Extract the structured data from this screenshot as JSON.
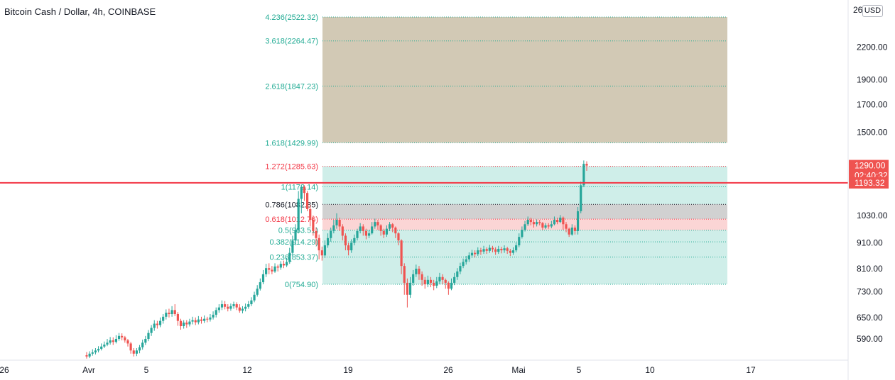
{
  "header": {
    "title": "Bitcoin Cash / Dollar, 4h, COINBASE",
    "currency_button": "USD",
    "top_right_partial": "26"
  },
  "colors": {
    "up": "#26a69a",
    "down": "#ef5350",
    "level_line": "#f23645",
    "price_tag": "#ef5350",
    "fib_teal": "#22ab94",
    "fib_red": "#f23645",
    "fib_black": "#131722"
  },
  "chart_data": {
    "type": "candlestick",
    "symbol": "Bitcoin Cash / Dollar",
    "interval": "4h",
    "exchange": "COINBASE",
    "x_ticks": [
      "26",
      "Avr",
      "5",
      "12",
      "19",
      "26",
      "Mai",
      "5",
      "10",
      "17"
    ],
    "y_scale": "log",
    "y_ticks": [
      "2200.00",
      "1900.00",
      "1700.00",
      "1500.00",
      "1030.00",
      "910.00",
      "810.00",
      "730.00",
      "650.00",
      "590.00"
    ],
    "current_price": {
      "label": "1290.00",
      "countdown": "02:40:32"
    },
    "horizontal_line": {
      "label": "1193.32",
      "value": 1193.32
    },
    "fib_extension": {
      "levels": [
        {
          "label": "4.236(2522.32)",
          "value": 2522.32,
          "color": "teal"
        },
        {
          "label": "3.618(2264.47)",
          "value": 2264.47,
          "color": "teal"
        },
        {
          "label": "2.618(1847.23)",
          "value": 1847.23,
          "color": "teal"
        },
        {
          "label": "1.618(1429.99)",
          "value": 1429.99,
          "color": "teal"
        },
        {
          "label": "1.272(1285.63)",
          "value": 1285.63,
          "color": "red"
        },
        {
          "label": "1(1172.14)",
          "value": 1172.14,
          "color": "teal"
        },
        {
          "label": "0.786(1082.85)",
          "value": 1082.85,
          "color": "black"
        },
        {
          "label": "0.618(1012.76)",
          "value": 1012.76,
          "color": "red"
        },
        {
          "label": "0.5(963.51)",
          "value": 963.51,
          "color": "teal"
        },
        {
          "label": "0.382(914.29)",
          "value": 914.29,
          "color": "teal"
        },
        {
          "label": "0.236(853.37)",
          "value": 853.37,
          "color": "teal"
        },
        {
          "label": "0(754.90)",
          "value": 754.9,
          "color": "teal"
        }
      ],
      "zones": [
        {
          "from": 1429.99,
          "to": 2522.32,
          "color": "#d2c9b5"
        },
        {
          "from": 1082.85,
          "to": 1285.63,
          "color": "#cfeee9"
        },
        {
          "from": 1012.76,
          "to": 1082.85,
          "color": "#d1d1d1"
        },
        {
          "from": 963.51,
          "to": 1012.76,
          "color": "#fbd5d5"
        },
        {
          "from": 754.9,
          "to": 963.51,
          "color": "#cfeee9"
        }
      ]
    },
    "ohlc_series": [
      [
        548,
        545,
        556,
        540
      ],
      [
        545,
        552,
        558,
        541
      ],
      [
        552,
        555,
        563,
        547
      ],
      [
        555,
        560,
        566,
        550
      ],
      [
        560,
        564,
        571,
        555
      ],
      [
        564,
        570,
        578,
        560
      ],
      [
        570,
        575,
        583,
        566
      ],
      [
        575,
        580,
        590,
        571
      ],
      [
        580,
        586,
        595,
        575
      ],
      [
        586,
        582,
        594,
        574
      ],
      [
        582,
        590,
        600,
        578
      ],
      [
        590,
        598,
        606,
        585
      ],
      [
        598,
        594,
        605,
        586
      ],
      [
        594,
        586,
        598,
        580
      ],
      [
        586,
        578,
        590,
        570
      ],
      [
        578,
        560,
        582,
        552
      ],
      [
        560,
        552,
        566,
        545
      ],
      [
        552,
        560,
        566,
        546
      ],
      [
        560,
        568,
        574,
        553
      ],
      [
        568,
        580,
        588,
        562
      ],
      [
        580,
        590,
        598,
        574
      ],
      [
        590,
        606,
        614,
        584
      ],
      [
        606,
        620,
        628,
        598
      ],
      [
        620,
        632,
        642,
        612
      ],
      [
        632,
        628,
        640,
        618
      ],
      [
        628,
        640,
        650,
        622
      ],
      [
        640,
        652,
        660,
        632
      ],
      [
        652,
        664,
        674,
        644
      ],
      [
        664,
        660,
        676,
        650
      ],
      [
        660,
        672,
        684,
        652
      ],
      [
        672,
        660,
        690,
        654
      ],
      [
        660,
        640,
        666,
        626
      ],
      [
        640,
        625,
        646,
        615
      ],
      [
        625,
        635,
        642,
        618
      ],
      [
        635,
        630,
        642,
        620
      ],
      [
        630,
        638,
        646,
        624
      ],
      [
        638,
        642,
        652,
        630
      ],
      [
        642,
        636,
        650,
        628
      ],
      [
        636,
        644,
        654,
        630
      ],
      [
        644,
        640,
        652,
        632
      ],
      [
        640,
        646,
        656,
        634
      ],
      [
        646,
        644,
        652,
        636
      ],
      [
        644,
        650,
        660,
        638
      ],
      [
        650,
        658,
        668,
        644
      ],
      [
        658,
        672,
        680,
        650
      ],
      [
        672,
        680,
        690,
        664
      ],
      [
        680,
        690,
        702,
        672
      ],
      [
        690,
        682,
        700,
        674
      ],
      [
        682,
        676,
        690,
        668
      ],
      [
        676,
        684,
        692,
        670
      ],
      [
        684,
        690,
        698,
        676
      ],
      [
        690,
        680,
        696,
        672
      ],
      [
        680,
        670,
        690,
        664
      ],
      [
        670,
        676,
        684,
        662
      ],
      [
        676,
        682,
        692,
        668
      ],
      [
        682,
        690,
        700,
        676
      ],
      [
        690,
        702,
        712,
        684
      ],
      [
        702,
        720,
        730,
        696
      ],
      [
        720,
        740,
        752,
        714
      ],
      [
        740,
        762,
        775,
        734
      ],
      [
        762,
        790,
        805,
        755
      ],
      [
        790,
        812,
        828,
        780
      ],
      [
        812,
        806,
        830,
        790
      ],
      [
        806,
        800,
        820,
        790
      ],
      [
        800,
        818,
        830,
        795
      ],
      [
        818,
        814,
        825,
        800
      ],
      [
        814,
        828,
        838,
        806
      ],
      [
        828,
        822,
        840,
        812
      ],
      [
        822,
        835,
        850,
        816
      ],
      [
        835,
        870,
        890,
        828
      ],
      [
        870,
        920,
        940,
        855
      ],
      [
        920,
        965,
        990,
        900
      ],
      [
        965,
        1110,
        1150,
        950
      ],
      [
        1110,
        1172,
        1180,
        1040
      ],
      [
        1172,
        1140,
        1180,
        1100
      ],
      [
        1140,
        1060,
        1150,
        1050
      ],
      [
        1060,
        1010,
        1080,
        980
      ],
      [
        1010,
        960,
        1030,
        940
      ],
      [
        960,
        930,
        975,
        900
      ],
      [
        930,
        880,
        945,
        845
      ],
      [
        880,
        860,
        895,
        840
      ],
      [
        860,
        900,
        920,
        850
      ],
      [
        900,
        930,
        950,
        890
      ],
      [
        930,
        960,
        975,
        915
      ],
      [
        960,
        985,
        1010,
        950
      ],
      [
        985,
        1010,
        1040,
        970
      ],
      [
        1010,
        980,
        1020,
        960
      ],
      [
        980,
        940,
        990,
        920
      ],
      [
        940,
        900,
        950,
        880
      ],
      [
        900,
        880,
        910,
        860
      ],
      [
        880,
        910,
        925,
        870
      ],
      [
        910,
        930,
        945,
        900
      ],
      [
        930,
        960,
        970,
        920
      ],
      [
        960,
        980,
        995,
        950
      ],
      [
        980,
        960,
        990,
        940
      ],
      [
        960,
        940,
        970,
        925
      ],
      [
        940,
        950,
        965,
        930
      ],
      [
        950,
        980,
        1000,
        945
      ],
      [
        980,
        1000,
        1015,
        970
      ],
      [
        1000,
        985,
        1010,
        965
      ],
      [
        985,
        960,
        990,
        940
      ],
      [
        960,
        945,
        970,
        930
      ],
      [
        945,
        970,
        985,
        935
      ],
      [
        970,
        990,
        1000,
        960
      ],
      [
        990,
        975,
        995,
        955
      ],
      [
        975,
        950,
        980,
        930
      ],
      [
        950,
        920,
        955,
        900
      ],
      [
        920,
        820,
        925,
        790
      ],
      [
        820,
        760,
        830,
        720
      ],
      [
        760,
        720,
        775,
        680
      ],
      [
        720,
        760,
        780,
        710
      ],
      [
        760,
        790,
        805,
        750
      ],
      [
        790,
        810,
        825,
        780
      ],
      [
        810,
        790,
        820,
        770
      ],
      [
        790,
        770,
        800,
        750
      ],
      [
        770,
        755,
        780,
        740
      ],
      [
        755,
        770,
        785,
        745
      ],
      [
        770,
        760,
        780,
        745
      ],
      [
        760,
        750,
        770,
        735
      ],
      [
        750,
        765,
        780,
        742
      ],
      [
        765,
        780,
        795,
        755
      ],
      [
        780,
        770,
        790,
        755
      ],
      [
        770,
        760,
        775,
        740
      ],
      [
        760,
        740,
        765,
        720
      ],
      [
        740,
        760,
        775,
        735
      ],
      [
        760,
        780,
        795,
        752
      ],
      [
        780,
        800,
        812,
        770
      ],
      [
        800,
        820,
        832,
        790
      ],
      [
        820,
        835,
        848,
        812
      ],
      [
        835,
        845,
        858,
        825
      ],
      [
        845,
        860,
        872,
        835
      ],
      [
        860,
        870,
        882,
        850
      ],
      [
        870,
        865,
        880,
        852
      ],
      [
        865,
        880,
        892,
        858
      ],
      [
        880,
        875,
        890,
        862
      ],
      [
        875,
        885,
        898,
        866
      ],
      [
        885,
        878,
        892,
        866
      ],
      [
        878,
        890,
        902,
        870
      ],
      [
        890,
        884,
        898,
        872
      ],
      [
        884,
        874,
        892,
        862
      ],
      [
        874,
        886,
        898,
        866
      ],
      [
        886,
        880,
        894,
        868
      ],
      [
        880,
        888,
        900,
        870
      ],
      [
        888,
        878,
        894,
        866
      ],
      [
        878,
        870,
        886,
        858
      ],
      [
        870,
        880,
        892,
        862
      ],
      [
        880,
        900,
        912,
        872
      ],
      [
        900,
        935,
        950,
        892
      ],
      [
        935,
        965,
        980,
        928
      ],
      [
        965,
        990,
        1005,
        958
      ],
      [
        990,
        1010,
        1025,
        982
      ],
      [
        1010,
        1000,
        1020,
        985
      ],
      [
        1000,
        990,
        1010,
        975
      ],
      [
        990,
        1000,
        1012,
        980
      ],
      [
        1000,
        995,
        1010,
        985
      ],
      [
        995,
        975,
        1000,
        965
      ],
      [
        975,
        985,
        995,
        968
      ],
      [
        985,
        980,
        995,
        970
      ],
      [
        980,
        990,
        1005,
        972
      ],
      [
        990,
        1010,
        1025,
        985
      ],
      [
        1010,
        1000,
        1020,
        990
      ],
      [
        1000,
        1020,
        1032,
        995
      ],
      [
        1020,
        990,
        1025,
        965
      ],
      [
        990,
        970,
        1000,
        955
      ],
      [
        970,
        945,
        975,
        935
      ],
      [
        945,
        975,
        990,
        940
      ],
      [
        975,
        960,
        985,
        945
      ],
      [
        960,
        1050,
        1070,
        945
      ],
      [
        1050,
        1180,
        1200,
        1040
      ],
      [
        1180,
        1300,
        1320,
        1170
      ],
      [
        1300,
        1290,
        1315,
        1260
      ]
    ]
  }
}
